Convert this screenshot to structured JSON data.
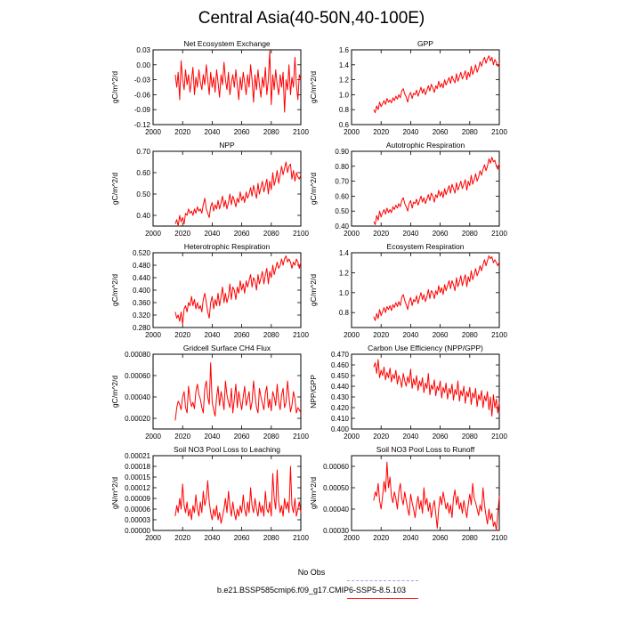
{
  "title": "Central Asia(40-50N,40-100E)",
  "colors": {
    "series": "#ff0000",
    "obs": "#a0a0e6",
    "axis": "#000000"
  },
  "legend": {
    "obs_label": "No Obs",
    "run_label": "b.e21.BSSP585cmip6.f09_g17.CMIP6-SSP5-8.5.103"
  },
  "chart_data": [
    {
      "type": "line",
      "title": "Net Ecosystem Exchange",
      "ylabel": "gC/m^2/d",
      "xlim": [
        2000,
        2100
      ],
      "ylim": [
        -0.12,
        0.03
      ],
      "xticks": [
        "2000",
        "2020",
        "2040",
        "2060",
        "2080",
        "2100"
      ],
      "yticks": [
        "0.03",
        "0.00",
        "-0.03",
        "-0.06",
        "-0.09",
        "-0.12"
      ],
      "start_year": 2015,
      "values": [
        -0.02,
        -0.045,
        -0.015,
        -0.07,
        0.008,
        -0.03,
        -0.05,
        -0.01,
        -0.04,
        -0.02,
        -0.055,
        -0.03,
        -0.005,
        -0.06,
        -0.025,
        -0.045,
        -0.01,
        -0.035,
        -0.05,
        -0.02,
        -0.04,
        0.0,
        -0.03,
        -0.06,
        -0.015,
        -0.045,
        -0.025,
        -0.055,
        -0.01,
        -0.035,
        -0.065,
        -0.02,
        -0.04,
        0.005,
        -0.03,
        -0.05,
        -0.015,
        -0.06,
        -0.035,
        -0.02,
        -0.045,
        -0.01,
        -0.04,
        -0.07,
        -0.025,
        -0.05,
        -0.015,
        -0.035,
        -0.06,
        -0.02,
        -0.045,
        0.0,
        -0.03,
        -0.075,
        -0.02,
        -0.05,
        -0.01,
        -0.04,
        -0.065,
        -0.025,
        -0.045,
        -0.005,
        -0.06,
        -0.03,
        0.028,
        -0.08,
        -0.02,
        -0.05,
        -0.01,
        -0.04,
        -0.06,
        -0.02,
        -0.045,
        -0.015,
        -0.095,
        -0.03,
        -0.05,
        0.0,
        -0.06,
        -0.025,
        -0.045,
        0.015,
        -0.04,
        -0.07,
        -0.02,
        -0.03
      ]
    },
    {
      "type": "line",
      "title": "GPP",
      "ylabel": "gC/m^2/d",
      "xlim": [
        2000,
        2100
      ],
      "ylim": [
        0.6,
        1.6
      ],
      "xticks": [
        "2000",
        "2020",
        "2040",
        "2060",
        "2080",
        "2100"
      ],
      "yticks": [
        "1.6",
        "1.4",
        "1.2",
        "1.0",
        "0.8",
        "0.6"
      ],
      "start_year": 2015,
      "values": [
        0.8,
        0.76,
        0.85,
        0.8,
        0.9,
        0.84,
        0.88,
        0.92,
        0.87,
        0.95,
        0.9,
        0.93,
        0.89,
        0.96,
        0.92,
        0.98,
        0.94,
        1.0,
        0.96,
        1.05,
        1.08,
        1.01,
        0.97,
        0.9,
        0.99,
        1.03,
        0.95,
        1.02,
        1.0,
        1.06,
        0.98,
        1.04,
        1.1,
        1.02,
        1.08,
        1.0,
        1.06,
        1.12,
        1.05,
        1.14,
        1.09,
        1.03,
        1.12,
        1.08,
        1.18,
        1.1,
        1.15,
        1.09,
        1.2,
        1.13,
        1.18,
        1.23,
        1.15,
        1.25,
        1.2,
        1.16,
        1.28,
        1.18,
        1.24,
        1.3,
        1.21,
        1.26,
        1.32,
        1.2,
        1.3,
        1.24,
        1.38,
        1.27,
        1.33,
        1.4,
        1.3,
        1.36,
        1.44,
        1.38,
        1.45,
        1.5,
        1.42,
        1.48,
        1.52,
        1.45,
        1.5,
        1.4,
        1.47,
        1.43,
        1.38,
        1.42
      ]
    },
    {
      "type": "line",
      "title": "NPP",
      "ylabel": "gC/m^2/d",
      "xlim": [
        2000,
        2100
      ],
      "ylim": [
        0.35,
        0.7
      ],
      "xticks": [
        "2000",
        "2020",
        "2040",
        "2060",
        "2080",
        "2100"
      ],
      "yticks": [
        "0.70",
        "0.60",
        "0.50",
        "0.40"
      ],
      "start_year": 2015,
      "values": [
        0.36,
        0.38,
        0.35,
        0.4,
        0.37,
        0.39,
        0.36,
        0.41,
        0.4,
        0.43,
        0.41,
        0.42,
        0.4,
        0.43,
        0.41,
        0.44,
        0.42,
        0.43,
        0.41,
        0.45,
        0.48,
        0.43,
        0.41,
        0.39,
        0.44,
        0.46,
        0.42,
        0.45,
        0.43,
        0.47,
        0.43,
        0.46,
        0.49,
        0.44,
        0.47,
        0.43,
        0.46,
        0.5,
        0.45,
        0.49,
        0.47,
        0.44,
        0.48,
        0.46,
        0.51,
        0.47,
        0.49,
        0.46,
        0.51,
        0.48,
        0.5,
        0.53,
        0.49,
        0.54,
        0.51,
        0.48,
        0.55,
        0.5,
        0.53,
        0.56,
        0.51,
        0.54,
        0.57,
        0.5,
        0.56,
        0.52,
        0.6,
        0.54,
        0.57,
        0.61,
        0.55,
        0.59,
        0.63,
        0.59,
        0.62,
        0.65,
        0.6,
        0.63,
        0.64,
        0.57,
        0.61,
        0.56,
        0.6,
        0.58,
        0.57,
        0.59
      ]
    },
    {
      "type": "line",
      "title": "Autotrophic Respiration",
      "ylabel": "gC/m^2/d",
      "xlim": [
        2000,
        2100
      ],
      "ylim": [
        0.4,
        0.9
      ],
      "xticks": [
        "2000",
        "2020",
        "2040",
        "2060",
        "2080",
        "2100"
      ],
      "yticks": [
        "0.90",
        "0.80",
        "0.70",
        "0.60",
        "0.50",
        "0.40"
      ],
      "start_year": 2015,
      "values": [
        0.43,
        0.41,
        0.47,
        0.44,
        0.5,
        0.46,
        0.49,
        0.51,
        0.48,
        0.52,
        0.49,
        0.51,
        0.49,
        0.53,
        0.51,
        0.54,
        0.52,
        0.55,
        0.53,
        0.57,
        0.59,
        0.55,
        0.53,
        0.5,
        0.55,
        0.57,
        0.52,
        0.56,
        0.55,
        0.58,
        0.54,
        0.57,
        0.6,
        0.56,
        0.59,
        0.55,
        0.58,
        0.61,
        0.57,
        0.62,
        0.6,
        0.56,
        0.61,
        0.59,
        0.64,
        0.6,
        0.63,
        0.59,
        0.65,
        0.61,
        0.64,
        0.67,
        0.62,
        0.68,
        0.65,
        0.62,
        0.69,
        0.64,
        0.67,
        0.7,
        0.65,
        0.68,
        0.71,
        0.64,
        0.7,
        0.67,
        0.74,
        0.68,
        0.71,
        0.75,
        0.7,
        0.73,
        0.77,
        0.74,
        0.78,
        0.81,
        0.77,
        0.8,
        0.85,
        0.82,
        0.86,
        0.83,
        0.84,
        0.8,
        0.78,
        0.82
      ]
    },
    {
      "type": "line",
      "title": "Heterotrophic Respiration",
      "ylabel": "gC/m^2/d",
      "xlim": [
        2000,
        2100
      ],
      "ylim": [
        0.28,
        0.52
      ],
      "xticks": [
        "2000",
        "2020",
        "2040",
        "2060",
        "2080",
        "2100"
      ],
      "yticks": [
        "0.520",
        "0.480",
        "0.440",
        "0.400",
        "0.360",
        "0.320",
        "0.280"
      ],
      "start_year": 2015,
      "values": [
        0.33,
        0.31,
        0.32,
        0.3,
        0.33,
        0.29,
        0.34,
        0.35,
        0.33,
        0.36,
        0.35,
        0.38,
        0.35,
        0.37,
        0.34,
        0.36,
        0.34,
        0.35,
        0.33,
        0.37,
        0.39,
        0.36,
        0.33,
        0.31,
        0.36,
        0.38,
        0.34,
        0.37,
        0.35,
        0.39,
        0.35,
        0.38,
        0.41,
        0.36,
        0.39,
        0.36,
        0.38,
        0.42,
        0.37,
        0.41,
        0.4,
        0.37,
        0.41,
        0.39,
        0.43,
        0.4,
        0.42,
        0.39,
        0.43,
        0.41,
        0.43,
        0.45,
        0.41,
        0.44,
        0.43,
        0.4,
        0.45,
        0.42,
        0.44,
        0.46,
        0.42,
        0.45,
        0.47,
        0.42,
        0.46,
        0.44,
        0.48,
        0.45,
        0.47,
        0.49,
        0.47,
        0.48,
        0.5,
        0.48,
        0.5,
        0.51,
        0.49,
        0.5,
        0.49,
        0.47,
        0.49,
        0.48,
        0.5,
        0.49,
        0.47,
        0.49
      ]
    },
    {
      "type": "line",
      "title": "Ecosystem Respiration",
      "ylabel": "gC/m^2/d",
      "xlim": [
        2000,
        2100
      ],
      "ylim": [
        0.65,
        1.4
      ],
      "xticks": [
        "2000",
        "2020",
        "2040",
        "2060",
        "2080",
        "2100"
      ],
      "yticks": [
        "1.4",
        "1.2",
        "1.0",
        "0.8"
      ],
      "start_year": 2015,
      "values": [
        0.76,
        0.72,
        0.79,
        0.74,
        0.83,
        0.77,
        0.81,
        0.85,
        0.8,
        0.86,
        0.83,
        0.87,
        0.82,
        0.88,
        0.85,
        0.9,
        0.86,
        0.91,
        0.87,
        0.95,
        0.98,
        0.92,
        0.88,
        0.83,
        0.91,
        0.95,
        0.87,
        0.93,
        0.91,
        0.97,
        0.89,
        0.95,
        1.0,
        0.93,
        0.98,
        0.91,
        0.96,
        1.03,
        0.94,
        1.02,
        1.0,
        0.94,
        1.02,
        0.98,
        1.07,
        1.0,
        1.05,
        0.98,
        1.08,
        1.02,
        1.07,
        1.12,
        1.04,
        1.12,
        1.08,
        1.02,
        1.15,
        1.06,
        1.11,
        1.17,
        1.07,
        1.13,
        1.18,
        1.06,
        1.16,
        1.11,
        1.22,
        1.13,
        1.18,
        1.24,
        1.17,
        1.21,
        1.27,
        1.22,
        1.28,
        1.33,
        1.27,
        1.32,
        1.37,
        1.34,
        1.36,
        1.3,
        1.33,
        1.3,
        1.27,
        1.31
      ]
    },
    {
      "type": "line",
      "title": "Gridcell Surface CH4 Flux",
      "ylabel": "gC/m^2/d",
      "xlim": [
        2000,
        2100
      ],
      "ylim": [
        0.0001,
        0.0008
      ],
      "xticks": [
        "2000",
        "2020",
        "2040",
        "2060",
        "2080",
        "2100"
      ],
      "yticks": [
        "0.00080",
        "0.00060",
        "0.00040",
        "0.00020"
      ],
      "start_year": 2015,
      "values": [
        0.00018,
        0.0003,
        0.00036,
        0.00033,
        0.00028,
        0.0004,
        0.00045,
        0.0003,
        0.00025,
        0.0005,
        0.00038,
        0.00031,
        0.00035,
        0.00029,
        0.00045,
        0.00052,
        0.00042,
        0.00038,
        0.0003,
        0.00025,
        0.00048,
        0.00055,
        0.0004,
        0.00033,
        0.00072,
        0.00035,
        0.00028,
        0.00022,
        0.0004,
        0.0005,
        0.00032,
        0.00045,
        0.00038,
        0.00028,
        0.00055,
        0.00042,
        0.00035,
        0.0003,
        0.00048,
        0.00025,
        0.00038,
        0.00052,
        0.0003,
        0.00045,
        0.00036,
        0.00028,
        0.0004,
        0.0005,
        0.00032,
        0.00038,
        0.00045,
        0.00028,
        0.00035,
        0.00055,
        0.00042,
        0.0003,
        0.00025,
        0.00048,
        0.0004,
        0.00034,
        0.00028,
        0.00044,
        0.0005,
        0.0003,
        0.00038,
        0.00027,
        0.00045,
        0.0004,
        0.00032,
        0.00052,
        0.00036,
        0.00028,
        0.00042,
        0.00048,
        0.0003,
        0.00035,
        0.00055,
        0.0004,
        0.00026,
        0.00032,
        0.00045,
        0.00038,
        0.00025,
        0.0003,
        0.00028,
        0.00025
      ]
    },
    {
      "type": "line",
      "title": "Carbon Use Efficiency (NPP/GPP)",
      "ylabel": "NPP/GPP",
      "xlim": [
        2000,
        2100
      ],
      "ylim": [
        0.4,
        0.47
      ],
      "xticks": [
        "2000",
        "2020",
        "2040",
        "2060",
        "2080",
        "2100"
      ],
      "yticks": [
        "0.470",
        "0.460",
        "0.450",
        "0.440",
        "0.430",
        "0.420",
        "0.410",
        "0.400"
      ],
      "start_year": 2015,
      "values": [
        0.458,
        0.462,
        0.452,
        0.465,
        0.448,
        0.455,
        0.45,
        0.458,
        0.446,
        0.453,
        0.448,
        0.457,
        0.444,
        0.451,
        0.447,
        0.455,
        0.442,
        0.45,
        0.446,
        0.439,
        0.452,
        0.445,
        0.44,
        0.449,
        0.443,
        0.456,
        0.438,
        0.447,
        0.441,
        0.45,
        0.436,
        0.445,
        0.44,
        0.448,
        0.434,
        0.443,
        0.438,
        0.452,
        0.432,
        0.441,
        0.437,
        0.446,
        0.431,
        0.44,
        0.436,
        0.445,
        0.429,
        0.439,
        0.434,
        0.443,
        0.428,
        0.438,
        0.433,
        0.442,
        0.427,
        0.437,
        0.432,
        0.445,
        0.426,
        0.436,
        0.431,
        0.44,
        0.424,
        0.435,
        0.43,
        0.439,
        0.423,
        0.434,
        0.429,
        0.438,
        0.421,
        0.432,
        0.427,
        0.436,
        0.42,
        0.431,
        0.426,
        0.435,
        0.418,
        0.43,
        0.412,
        0.432,
        0.42,
        0.428,
        0.415,
        0.425
      ]
    },
    {
      "type": "line",
      "title": "Soil NO3 Pool Loss to Leaching",
      "ylabel": "gN/m^2/d",
      "xlim": [
        2000,
        2100
      ],
      "ylim": [
        0.0,
        0.00021
      ],
      "xticks": [
        "2000",
        "2020",
        "2040",
        "2060",
        "2080",
        "2100"
      ],
      "yticks": [
        "0.00021",
        "0.00018",
        "0.00015",
        "0.00012",
        "0.00009",
        "0.00006",
        "0.00003",
        "0.00000"
      ],
      "start_year": 2015,
      "values": [
        4e-05,
        7e-05,
        5e-05,
        9e-05,
        6e-05,
        0.00013,
        7e-05,
        5e-05,
        8e-05,
        4e-05,
        6e-05,
        3e-05,
        7e-05,
        5e-05,
        0.0001,
        6e-05,
        4e-05,
        8e-05,
        5e-05,
        0.00011,
        7e-05,
        9e-05,
        0.00014,
        8e-05,
        5e-05,
        3e-05,
        6e-05,
        4e-05,
        7e-05,
        3e-05,
        5e-05,
        2e-05,
        4e-05,
        6e-05,
        9e-05,
        5e-05,
        0.00011,
        7e-05,
        4e-05,
        8e-05,
        5e-05,
        3e-05,
        6e-05,
        4e-05,
        7e-05,
        5e-05,
        0.0001,
        6e-05,
        4e-05,
        8e-05,
        5e-05,
        0.00012,
        7e-05,
        5e-05,
        9e-05,
        6e-05,
        4e-05,
        8e-05,
        5e-05,
        7e-05,
        4e-05,
        0.00011,
        6e-05,
        5e-05,
        8e-05,
        4e-05,
        0.00016,
        9e-05,
        6e-05,
        0.00017,
        8e-05,
        5e-05,
        7e-05,
        4e-05,
        9e-05,
        6e-05,
        8e-05,
        5e-05,
        0.00018,
        7e-05,
        5e-05,
        9e-05,
        4e-05,
        6e-05,
        8e-05,
        5e-05
      ]
    },
    {
      "type": "line",
      "title": "Soil NO3 Pool Loss to Runoff",
      "ylabel": "gN/m^2/d",
      "xlim": [
        2000,
        2100
      ],
      "ylim": [
        0.0003,
        0.00065
      ],
      "xticks": [
        "2000",
        "2020",
        "2040",
        "2060",
        "2080",
        "2100"
      ],
      "yticks": [
        "0.00060",
        "0.00050",
        "0.00040",
        "0.00030"
      ],
      "start_year": 2015,
      "values": [
        0.00044,
        0.00048,
        0.00046,
        0.00052,
        0.00044,
        0.0004,
        0.00046,
        0.00053,
        0.00048,
        0.00062,
        0.0005,
        0.00055,
        0.00046,
        0.00043,
        0.00048,
        0.00045,
        0.0004,
        0.00048,
        0.00052,
        0.00045,
        0.00042,
        0.00048,
        0.00044,
        0.0004,
        0.00037,
        0.00047,
        0.00043,
        0.0004,
        0.00036,
        0.00042,
        0.00046,
        0.0004,
        0.00044,
        0.00038,
        0.0005,
        0.00042,
        0.00045,
        0.00039,
        0.00043,
        0.00036,
        0.00041,
        0.00044,
        0.00038,
        0.00031,
        0.0004,
        0.00046,
        0.00042,
        0.00048,
        0.00044,
        0.0004,
        0.00043,
        0.00038,
        0.00042,
        0.00036,
        0.00045,
        0.00049,
        0.00042,
        0.00046,
        0.0004,
        0.00043,
        0.00038,
        0.00044,
        0.0004,
        0.00036,
        0.00042,
        0.00047,
        0.00042,
        0.00052,
        0.00045,
        0.00043,
        0.0004,
        0.00037,
        0.00042,
        0.00039,
        0.0005,
        0.00042,
        0.00037,
        0.00033,
        0.0004,
        0.00035,
        0.00038,
        0.00032,
        0.00034,
        0.0003,
        0.00038,
        0.00046
      ]
    }
  ]
}
